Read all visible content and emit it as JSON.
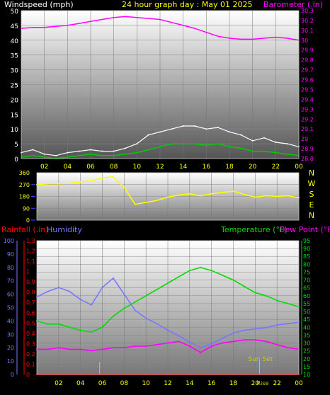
{
  "chart_data": [
    {
      "type": "line",
      "title": "24 hour graph day : May 01 2025",
      "left_axis_label": "Windspeed (mph)",
      "right_axis_label": "Barometer (.in)",
      "x_tick_labels": [
        "02",
        "04",
        "06",
        "08",
        "10",
        "12",
        "14",
        "16",
        "18",
        "20",
        "22",
        "00"
      ],
      "y_left_ticks": [
        "0",
        "5",
        "10",
        "15",
        "20",
        "25",
        "30",
        "35",
        "40",
        "45",
        "50"
      ],
      "y_left_range": [
        0,
        50
      ],
      "y_right_ticks": [
        "28.8",
        "28.9",
        "29",
        "29.1",
        "29.2",
        "29.3",
        "29.4",
        "29.5",
        "29.6",
        "29.7",
        "29.8",
        "29.9",
        "30",
        "30.1",
        "30.2",
        "30.3"
      ],
      "y_right_range": [
        28.8,
        30.3
      ],
      "x_hours": [
        0,
        1,
        2,
        3,
        4,
        5,
        6,
        7,
        8,
        9,
        10,
        11,
        12,
        13,
        14,
        15,
        16,
        17,
        18,
        19,
        20,
        21,
        22,
        23,
        24
      ],
      "series": [
        {
          "values": [
            0.5,
            1,
            0.5,
            0,
            0.5,
            1,
            1.5,
            1,
            1,
            1.5,
            2,
            3,
            4,
            5,
            5,
            5,
            4.5,
            5,
            4,
            3.5,
            2.5,
            2.5,
            2,
            1.5,
            1
          ]
        },
        {
          "values": [
            2,
            3,
            1.5,
            1,
            2,
            2.5,
            3,
            2.5,
            2.5,
            3.5,
            5,
            8,
            9,
            10,
            11,
            11,
            10,
            10.5,
            9,
            8,
            6,
            7,
            5.5,
            5,
            4
          ]
        },
        {
          "values": [
            30.12,
            30.13,
            30.13,
            30.14,
            30.15,
            30.17,
            30.19,
            30.21,
            30.23,
            30.24,
            30.23,
            30.22,
            30.21,
            30.18,
            30.15,
            30.12,
            30.08,
            30.04,
            30.02,
            30.01,
            30.01,
            30.02,
            30.03,
            30.02,
            30.0
          ]
        }
      ]
    },
    {
      "type": "line",
      "y_ticks": [
        "0",
        "90",
        "180",
        "270",
        "360"
      ],
      "y_range": [
        0,
        360
      ],
      "compass_labels": [
        "N",
        "W",
        "S",
        "E",
        "N"
      ],
      "x_hours": [
        0,
        1,
        2,
        3,
        4,
        5,
        6,
        7,
        8,
        9,
        10,
        11,
        12,
        13,
        14,
        15,
        16,
        17,
        18,
        19,
        20,
        21,
        22,
        23,
        24
      ],
      "series": [
        {
          "values": [
            270,
            275,
            275,
            280,
            290,
            300,
            320,
            330,
            250,
            120,
            135,
            150,
            175,
            190,
            200,
            185,
            200,
            210,
            220,
            195,
            175,
            185,
            180,
            185,
            170
          ]
        }
      ]
    },
    {
      "type": "line",
      "left_labels": [
        "Rainfall (.in)",
        "Humidity"
      ],
      "right_labels": [
        "Temperature (°F)",
        "Dew Point (°F)"
      ],
      "x_tick_labels": [
        "02",
        "04",
        "06",
        "08",
        "10",
        "12",
        "14",
        "16",
        "18",
        "20",
        "22",
        "00"
      ],
      "y_humidity_ticks": [
        "0",
        "10",
        "20",
        "30",
        "40",
        "50",
        "60",
        "70",
        "80",
        "90",
        "100"
      ],
      "y_humidity_range": [
        0,
        100
      ],
      "y_rain_ticks": [
        "0",
        "0.1",
        "0.2",
        "0.3",
        "0.4",
        "0.5",
        "0.6",
        "0.7",
        "0.8",
        "0.9",
        "1",
        "1.1",
        "1.2",
        "1.3"
      ],
      "y_rain_range": [
        0,
        1.3
      ],
      "y_temp_ticks": [
        "10",
        "15",
        "20",
        "25",
        "30",
        "35",
        "40",
        "45",
        "50",
        "55",
        "60",
        "65",
        "70",
        "75",
        "80",
        "85",
        "90",
        "95"
      ],
      "y_temp_range": [
        10,
        95
      ],
      "sun_set_label": "Sun Set",
      "sun_rise_label": "Rise",
      "x_hours": [
        0,
        1,
        2,
        3,
        4,
        5,
        6,
        7,
        8,
        9,
        10,
        11,
        12,
        13,
        14,
        15,
        16,
        17,
        18,
        19,
        20,
        21,
        22,
        23,
        24
      ],
      "series": [
        {
          "values": [
            58,
            62,
            65,
            62,
            56,
            52,
            65,
            72,
            60,
            48,
            42,
            38,
            33,
            29,
            24,
            20,
            23,
            27,
            31,
            33,
            34,
            35,
            37,
            38,
            39
          ]
        },
        {
          "values": [
            0,
            0,
            0,
            0,
            0,
            0,
            0,
            0,
            0,
            0,
            0,
            0,
            0,
            0,
            0,
            0,
            0,
            0,
            0,
            0,
            0,
            0,
            0,
            0,
            0
          ]
        },
        {
          "values": [
            44,
            42,
            42,
            40,
            38,
            37,
            40,
            47,
            52,
            56,
            60,
            64,
            68,
            72,
            76,
            78,
            76,
            73,
            70,
            66,
            62,
            60,
            57,
            55,
            53
          ]
        },
        {
          "values": [
            26,
            26,
            27,
            26,
            26,
            25,
            26,
            27,
            27,
            28,
            28,
            29,
            30,
            31,
            28,
            24,
            28,
            30,
            31,
            32,
            32,
            31,
            29,
            27,
            26
          ]
        }
      ]
    }
  ],
  "colors": {
    "title": "#ffff00",
    "windspeed_label": "#ffffff",
    "barometer": "#ff00ff",
    "gust": "#ffffff",
    "wind_avg": "#00cc00",
    "wind_dir": "#ffff00",
    "compass": "#ffff00",
    "rain": "#ff0000",
    "humidity": "#7777ff",
    "temperature": "#00dd00",
    "dewpoint": "#ff00ff",
    "sun": "#cccc00"
  }
}
